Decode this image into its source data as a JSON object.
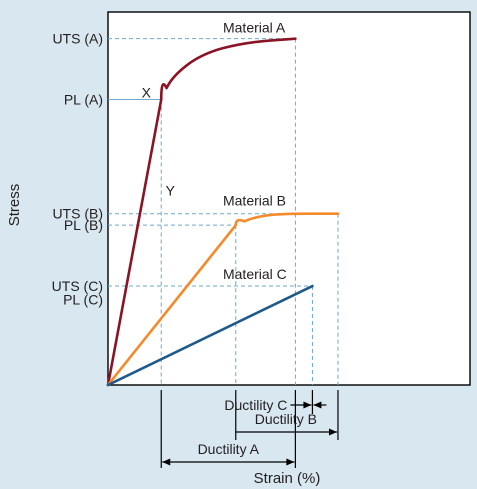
{
  "chart_data": {
    "type": "line",
    "title": "",
    "xlabel": "Strain (%)",
    "ylabel": "Stress",
    "y_tick_labels": [
      {
        "label": "UTS (A)",
        "level": "uts_a"
      },
      {
        "label": "PL (A)",
        "level": "pl_a"
      },
      {
        "label": "UTS (B)",
        "level": "uts_b"
      },
      {
        "label": "PL (B)",
        "level": "pl_b"
      },
      {
        "label": "UTS (C)",
        "level": "uts_c"
      },
      {
        "label": "PL (C)",
        "level": "pl_c"
      }
    ],
    "series": [
      {
        "name": "Material A",
        "color": "#8b1424",
        "points": [
          [
            0,
            0
          ],
          [
            1.25,
            7.5
          ],
          [
            1.5,
            8.1
          ],
          [
            2.2,
            8.7
          ],
          [
            3.2,
            9.0
          ],
          [
            4.4,
            9.1
          ]
        ]
      },
      {
        "name": "Material B",
        "color": "#f58a2a",
        "points": [
          [
            0,
            0
          ],
          [
            3.0,
            4.2
          ],
          [
            3.4,
            4.4
          ],
          [
            4.0,
            4.5
          ],
          [
            5.4,
            4.5
          ]
        ]
      },
      {
        "name": "Material C",
        "color": "#1d5a8c",
        "points": [
          [
            0,
            0
          ],
          [
            4.8,
            2.6
          ]
        ]
      }
    ],
    "point_labels": [
      {
        "text": "X",
        "point": [
          1.25,
          7.5
        ]
      },
      {
        "text": "Y",
        "point": [
          1.25,
          5.0
        ]
      }
    ],
    "ductility_labels": [
      {
        "label": "Ductility C",
        "material": "Material C"
      },
      {
        "label": "Ductility B",
        "material": "Material B"
      },
      {
        "label": "Ductility A",
        "material": "Material A"
      }
    ],
    "xlim": [
      0,
      8.5
    ],
    "ylim": [
      0,
      9.8
    ],
    "grid": false,
    "legend": "none"
  }
}
